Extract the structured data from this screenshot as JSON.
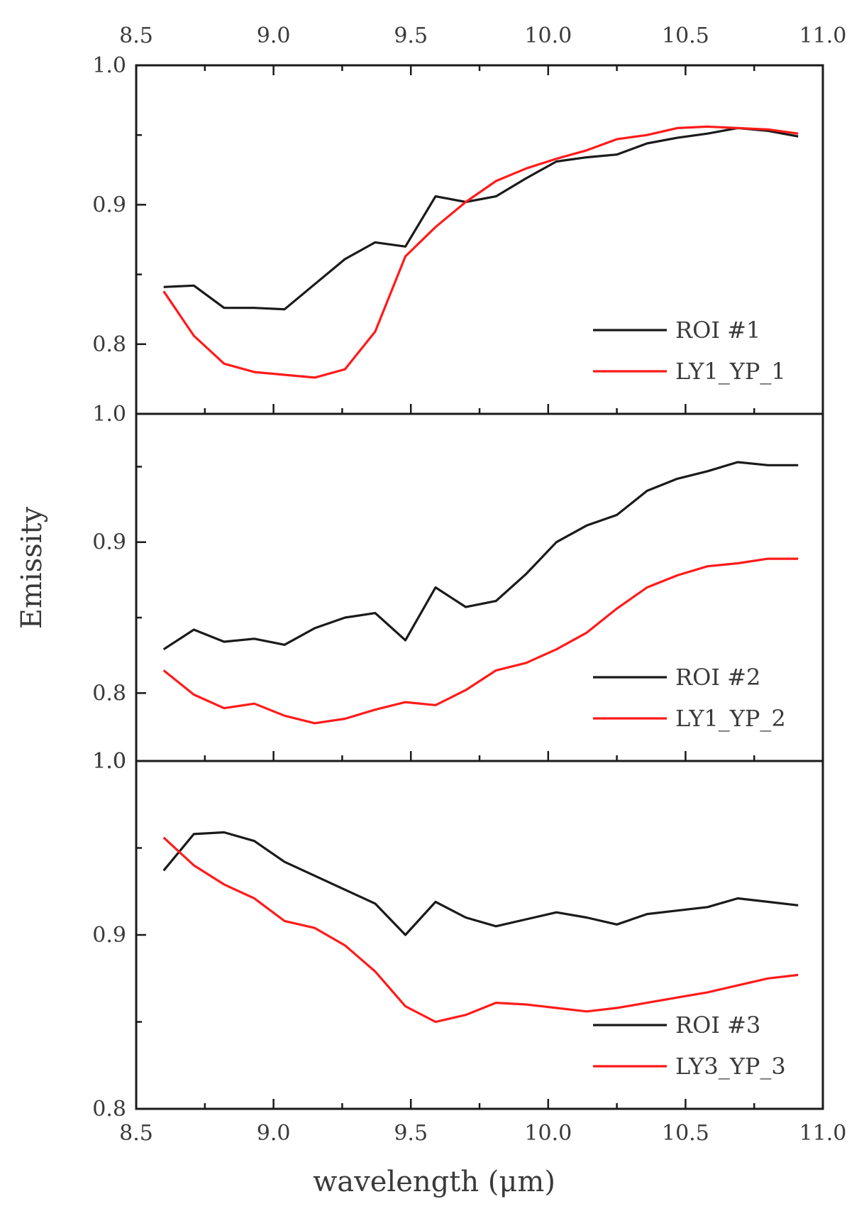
{
  "figure": {
    "xlabel": "wavelength (μm)",
    "ylabel": "Emissity",
    "xlim": [
      8.5,
      11.0
    ],
    "x_ticks": [
      8.5,
      9.0,
      9.5,
      10.0,
      10.5,
      11.0
    ],
    "x_tick_labels": [
      "8.5",
      "9.0",
      "9.5",
      "10.0",
      "10.5",
      "11.0"
    ]
  },
  "chart_data": [
    {
      "type": "line",
      "panel": "top",
      "ylim": [
        0.75,
        1.0
      ],
      "y_ticks": [
        0.8,
        0.9,
        1.0
      ],
      "y_tick_labels": [
        "0.8",
        "0.9",
        "1.0"
      ],
      "bottom_label": "1.0",
      "legend_position": "bottom-right",
      "x": [
        8.6,
        8.71,
        8.82,
        8.93,
        9.04,
        9.15,
        9.26,
        9.37,
        9.48,
        9.59,
        9.7,
        9.81,
        9.92,
        10.03,
        10.14,
        10.25,
        10.36,
        10.47,
        10.58,
        10.69,
        10.8,
        10.91
      ],
      "series": [
        {
          "name": "ROI #1",
          "color": "#1a1a1a",
          "values": [
            0.841,
            0.842,
            0.826,
            0.826,
            0.825,
            0.843,
            0.861,
            0.873,
            0.87,
            0.906,
            0.902,
            0.906,
            0.919,
            0.931,
            0.934,
            0.936,
            0.944,
            0.948,
            0.951,
            0.955,
            0.953,
            0.949
          ]
        },
        {
          "name": "LY1_YP_1",
          "color": "#ff1a1a",
          "values": [
            0.838,
            0.806,
            0.786,
            0.78,
            0.778,
            0.776,
            0.782,
            0.809,
            0.863,
            0.884,
            0.902,
            0.917,
            0.926,
            0.933,
            0.939,
            0.947,
            0.95,
            0.955,
            0.956,
            0.955,
            0.954,
            0.951
          ]
        }
      ]
    },
    {
      "type": "line",
      "panel": "middle",
      "ylim": [
        0.755,
        0.985
      ],
      "y_ticks": [
        0.8,
        0.9
      ],
      "y_tick_labels": [
        "0.8",
        "0.9"
      ],
      "bottom_label": "1.0",
      "legend_position": "bottom-right",
      "x": [
        8.6,
        8.71,
        8.82,
        8.93,
        9.04,
        9.15,
        9.26,
        9.37,
        9.48,
        9.59,
        9.7,
        9.81,
        9.92,
        10.03,
        10.14,
        10.25,
        10.36,
        10.47,
        10.58,
        10.69,
        10.8,
        10.91
      ],
      "series": [
        {
          "name": "ROI #2",
          "color": "#1a1a1a",
          "values": [
            0.829,
            0.842,
            0.834,
            0.836,
            0.832,
            0.843,
            0.85,
            0.853,
            0.835,
            0.87,
            0.857,
            0.861,
            0.879,
            0.9,
            0.911,
            0.918,
            0.934,
            0.942,
            0.947,
            0.953,
            0.951,
            0.951
          ]
        },
        {
          "name": "LY1_YP_2",
          "color": "#ff1a1a",
          "values": [
            0.815,
            0.799,
            0.79,
            0.793,
            0.785,
            0.78,
            0.783,
            0.789,
            0.794,
            0.792,
            0.802,
            0.815,
            0.82,
            0.829,
            0.84,
            0.856,
            0.87,
            0.878,
            0.884,
            0.886,
            0.889,
            0.889
          ]
        }
      ]
    },
    {
      "type": "line",
      "panel": "bottom",
      "ylim": [
        0.8,
        1.0
      ],
      "y_ticks": [
        0.8,
        0.9,
        1.0
      ],
      "y_tick_labels": [
        "0.8",
        "0.9",
        "1.0"
      ],
      "legend_position": "bottom-right",
      "x": [
        8.6,
        8.71,
        8.82,
        8.93,
        9.04,
        9.15,
        9.26,
        9.37,
        9.48,
        9.59,
        9.7,
        9.81,
        9.92,
        10.03,
        10.14,
        10.25,
        10.36,
        10.47,
        10.58,
        10.69,
        10.8,
        10.91
      ],
      "series": [
        {
          "name": "ROI #3",
          "color": "#1a1a1a",
          "values": [
            0.937,
            0.958,
            0.959,
            0.954,
            0.942,
            0.934,
            0.926,
            0.918,
            0.9,
            0.919,
            0.91,
            0.905,
            0.909,
            0.913,
            0.91,
            0.906,
            0.912,
            0.914,
            0.916,
            0.921,
            0.919,
            0.917
          ]
        },
        {
          "name": "LY3_YP_3",
          "color": "#ff1a1a",
          "values": [
            0.956,
            0.94,
            0.929,
            0.921,
            0.908,
            0.904,
            0.894,
            0.879,
            0.859,
            0.85,
            0.854,
            0.861,
            0.86,
            0.858,
            0.856,
            0.858,
            0.861,
            0.864,
            0.867,
            0.871,
            0.875,
            0.877
          ]
        }
      ]
    }
  ]
}
